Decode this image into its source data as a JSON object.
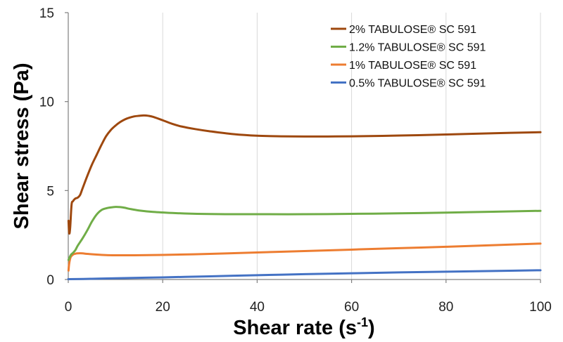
{
  "chart_data": {
    "type": "line",
    "title": "",
    "xlabel": "Shear rate (s",
    "xlabel_sup": "-1",
    "xlabel_end": ")",
    "ylabel": "Shear stress (Pa)",
    "xlim": [
      0,
      100
    ],
    "ylim": [
      0,
      15
    ],
    "xticks": [
      "0",
      "20",
      "40",
      "60",
      "80",
      "100"
    ],
    "yticks": [
      "0",
      "5",
      "10",
      "15"
    ],
    "xtick_values": [
      0,
      20,
      40,
      60,
      80,
      100
    ],
    "ytick_values": [
      0,
      5,
      10,
      15
    ],
    "grid": "vertical",
    "legend_position": "top-right",
    "series": [
      {
        "name": "2% TABULOSE® SC 591",
        "color": "#9e480e",
        "x": [
          0.05,
          0.2,
          0.4,
          0.7,
          1.0,
          1.5,
          2.0,
          2.5,
          3,
          4,
          5,
          6,
          7,
          8,
          9,
          10,
          11,
          12,
          13,
          14,
          15,
          16,
          17,
          18,
          20,
          22,
          24,
          27,
          30,
          35,
          40,
          45,
          50,
          55,
          60,
          70,
          80,
          90,
          100
        ],
        "y": [
          3.3,
          2.6,
          2.9,
          4.2,
          4.4,
          4.55,
          4.6,
          4.75,
          5.1,
          5.8,
          6.45,
          7.0,
          7.55,
          8.05,
          8.4,
          8.65,
          8.85,
          9.0,
          9.1,
          9.17,
          9.2,
          9.22,
          9.2,
          9.14,
          8.95,
          8.75,
          8.6,
          8.45,
          8.33,
          8.17,
          8.08,
          8.05,
          8.04,
          8.04,
          8.05,
          8.09,
          8.15,
          8.22,
          8.28
        ]
      },
      {
        "name": "1.2% TABULOSE® SC 591",
        "color": "#70ad47",
        "x": [
          0.05,
          0.3,
          0.6,
          1,
          1.5,
          2,
          3,
          4,
          5,
          6,
          7,
          8,
          9,
          10,
          11,
          12,
          13,
          15,
          18,
          22,
          26,
          30,
          35,
          40,
          50,
          60,
          70,
          80,
          90,
          100
        ],
        "y": [
          1.1,
          1.25,
          1.4,
          1.5,
          1.65,
          1.9,
          2.3,
          2.75,
          3.25,
          3.65,
          3.9,
          4.0,
          4.05,
          4.08,
          4.07,
          4.03,
          3.97,
          3.88,
          3.8,
          3.74,
          3.7,
          3.68,
          3.67,
          3.67,
          3.67,
          3.69,
          3.72,
          3.76,
          3.81,
          3.86
        ]
      },
      {
        "name": "1% TABULOSE® SC 591",
        "color": "#ed7d31",
        "x": [
          0.05,
          0.2,
          0.5,
          1,
          1.5,
          2,
          3,
          4,
          6,
          8,
          10,
          14,
          20,
          30,
          40,
          50,
          60,
          70,
          80,
          90,
          100
        ],
        "y": [
          0.5,
          0.9,
          1.25,
          1.4,
          1.45,
          1.47,
          1.47,
          1.44,
          1.4,
          1.37,
          1.36,
          1.36,
          1.38,
          1.44,
          1.52,
          1.6,
          1.68,
          1.76,
          1.84,
          1.93,
          2.02
        ]
      },
      {
        "name": "0.5% TABULOSE® SC 591",
        "color": "#4472c4",
        "x": [
          0,
          5,
          10,
          20,
          30,
          40,
          50,
          60,
          70,
          80,
          90,
          100
        ],
        "y": [
          0.02,
          0.04,
          0.07,
          0.12,
          0.18,
          0.24,
          0.3,
          0.35,
          0.4,
          0.44,
          0.48,
          0.52
        ]
      }
    ]
  }
}
